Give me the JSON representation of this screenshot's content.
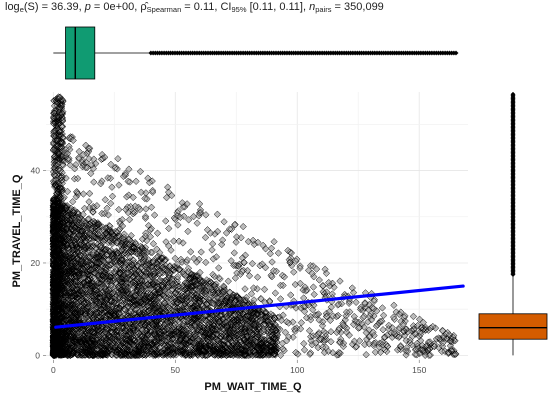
{
  "stats": {
    "log_label": "log",
    "log_sub": "e",
    "log_expr": "(S) = 36.39, ",
    "p_label": "p",
    "p_value": " = 0e+00, ",
    "rho_label": "ρ̂",
    "rho_sub": "Spearman",
    "rho_value": " = 0.11, CI",
    "ci_sub": "95%",
    "ci_value": " [0.11, 0.11], ",
    "n_label": "n",
    "n_sub": "pairs",
    "n_value": " = 350,099"
  },
  "chart_data": {
    "type": "scatter",
    "xlabel": "PM_WAIT_TIME_Q",
    "ylabel": "PM_TRAVEL_TIME_Q",
    "x_ticks": [
      0,
      50,
      100,
      150
    ],
    "y_ticks": [
      0,
      20,
      40
    ],
    "xlim": [
      -3,
      170
    ],
    "ylim": [
      -1,
      57
    ],
    "marker": "diamond",
    "point_color": "#000000",
    "grid": true,
    "fit_line": {
      "x": [
        1,
        168
      ],
      "y": [
        6.1,
        15.0
      ],
      "color": "#0000ff"
    },
    "stats": {
      "log_e_S": 36.39,
      "p": 0,
      "rho_spearman": 0.11,
      "ci_95": [
        0.11,
        0.11
      ],
      "n_pairs": 350099
    },
    "x_marginal": {
      "type": "boxplot",
      "fill": "#109b72",
      "q1": 5,
      "median": 9,
      "q3": 17,
      "whisker_low": 0,
      "whisker_high": 40,
      "outlier_max": 166
    },
    "y_marginal": {
      "type": "boxplot",
      "fill": "#d45c00",
      "q1": 3.5,
      "median": 6,
      "q3": 9,
      "whisker_low": 0,
      "whisker_high": 17.5,
      "outlier_max": 57
    }
  }
}
